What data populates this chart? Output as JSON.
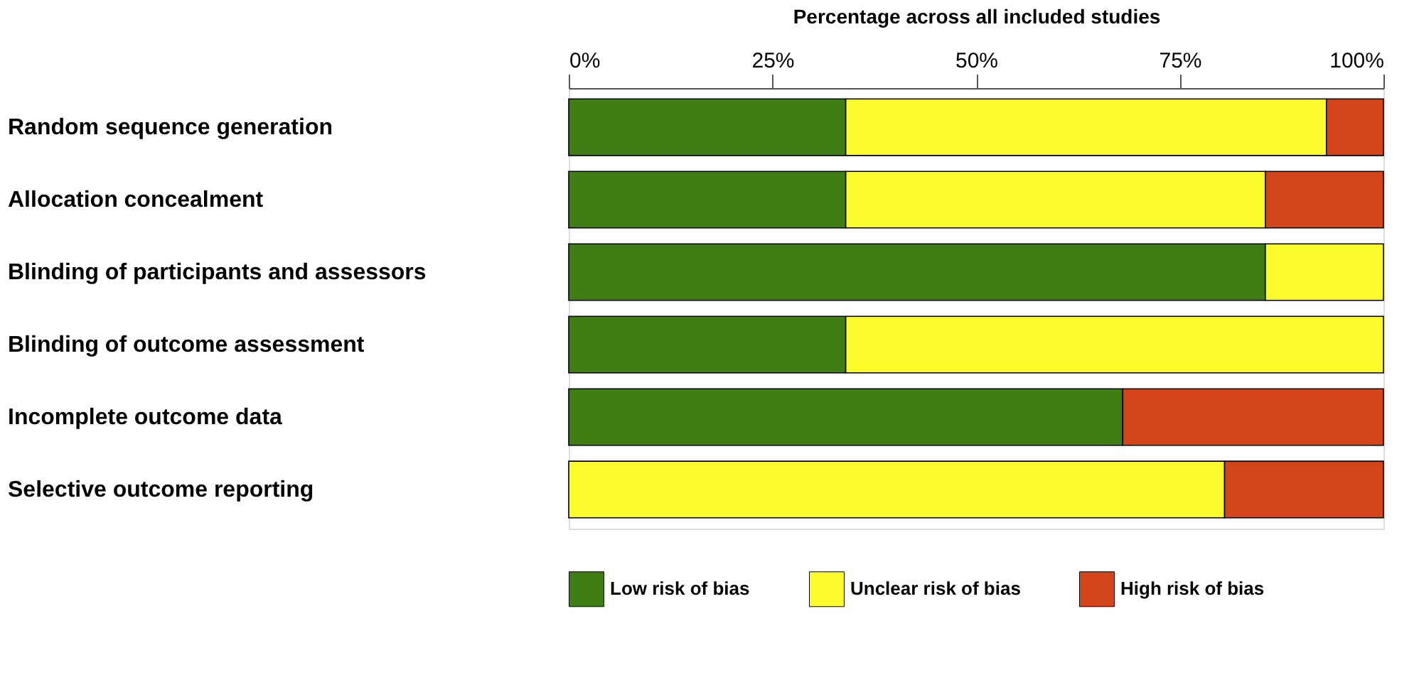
{
  "chart_data": {
    "type": "bar",
    "orientation": "horizontal",
    "stacked": true,
    "xlabel": "Percentage across all included studies",
    "categories": [
      "Random sequence generation",
      "Allocation concealment",
      "Blinding of participants and assessors",
      "Blinding of outcome assessment",
      "Incomplete outcome data",
      "Selective outcome reporting"
    ],
    "series": [
      {
        "name": "Low risk of bias",
        "color": "#3f7e15",
        "values": [
          34,
          34,
          85.5,
          34,
          68,
          null
        ]
      },
      {
        "name": "Unclear risk of bias",
        "color": "#fbfb2c",
        "values": [
          59,
          51.5,
          14.5,
          66,
          null,
          80.5
        ]
      },
      {
        "name": "High risk of bias",
        "color": "#d3441a",
        "values": [
          7,
          14.5,
          null,
          null,
          32,
          19.5
        ]
      }
    ],
    "xlim": [
      0,
      100
    ],
    "xticks": [
      {
        "value": 0,
        "label": "0%"
      },
      {
        "value": 25,
        "label": "25%"
      },
      {
        "value": 50,
        "label": "50%"
      },
      {
        "value": 75,
        "label": "75%"
      },
      {
        "value": 100,
        "label": "100%"
      }
    ],
    "grid": false,
    "legend": "bottom"
  }
}
